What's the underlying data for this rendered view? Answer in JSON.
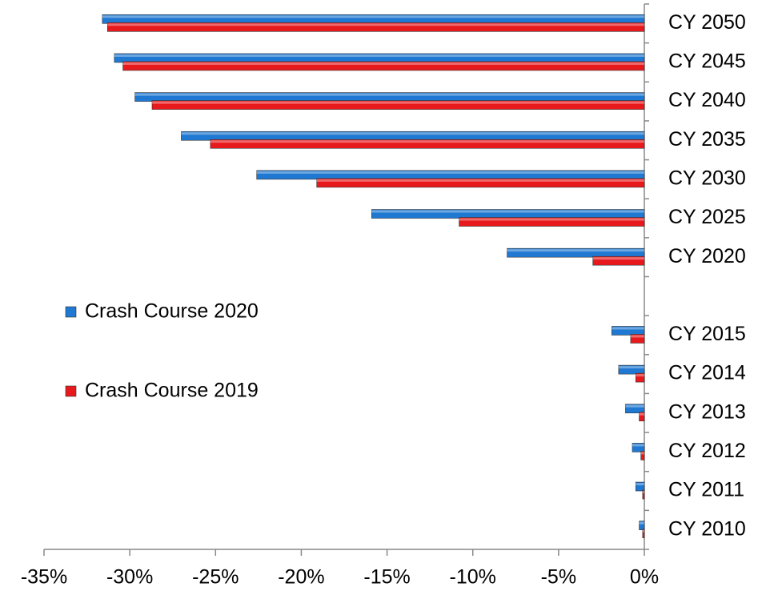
{
  "chart_data": {
    "type": "hbar",
    "categories": [
      "CY 2050",
      "CY 2045",
      "CY 2040",
      "CY 2035",
      "CY 2030",
      "CY 2025",
      "CY 2020",
      null,
      "CY 2015",
      "CY 2014",
      "CY 2013",
      "CY 2012",
      "CY 2011",
      "CY 2010"
    ],
    "series": [
      {
        "name": "Crash Course 2020",
        "color": "#1f78d1",
        "values": [
          -31.6,
          -30.9,
          -29.7,
          -27.0,
          -22.6,
          -15.9,
          -8.0,
          null,
          -1.9,
          -1.5,
          -1.1,
          -0.7,
          -0.5,
          -0.3
        ]
      },
      {
        "name": "Crash Course 2019",
        "color": "#e8191c",
        "values": [
          -31.3,
          -30.4,
          -28.7,
          -25.3,
          -19.1,
          -10.8,
          -3.0,
          null,
          -0.8,
          -0.5,
          -0.3,
          -0.2,
          -0.1,
          -0.1
        ]
      }
    ],
    "xlim": [
      -35,
      0
    ],
    "xticks": [
      {
        "value": -35,
        "label": "-35%"
      },
      {
        "value": -30,
        "label": "-30%"
      },
      {
        "value": -25,
        "label": "-25%"
      },
      {
        "value": -20,
        "label": "-20%"
      },
      {
        "value": -15,
        "label": "-15%"
      },
      {
        "value": -10,
        "label": "-10%"
      },
      {
        "value": -5,
        "label": "-5%"
      },
      {
        "value": 0,
        "label": "0%"
      }
    ],
    "legend": "left"
  }
}
